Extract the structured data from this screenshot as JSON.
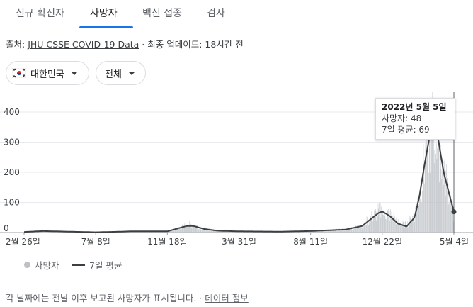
{
  "tabs": [
    {
      "label": "신규 확진자",
      "active": false
    },
    {
      "label": "사망자",
      "active": true
    },
    {
      "label": "백신 접종",
      "active": false
    },
    {
      "label": "검사",
      "active": false
    }
  ],
  "source": {
    "prefix": "출처: ",
    "link": "JHU CSSE COVID-19 Data",
    "separator": " · ",
    "updated": "최종 업데이트: 18시간 전"
  },
  "filters": {
    "country": "대한민국",
    "country_flag": "south-korea-flag-icon",
    "region": "전체"
  },
  "tooltip": {
    "date": "2022년 5월 5일",
    "deaths": "사망자: 48",
    "avg": "7일 평균: 69"
  },
  "legend": {
    "deaths": "사망자",
    "avg": "7일 평균"
  },
  "footer": {
    "note": "각 날짜에는 전날 이후 보고된 사망자가 표시됩니다.",
    "separator": " · ",
    "link": "데이터 정보"
  },
  "colors": {
    "accent": "#1a73e8",
    "bars": "#bdc1c6",
    "avg_line": "#3c4043"
  },
  "chart_data": {
    "type": "bar",
    "title": "",
    "xlabel": "",
    "ylabel": "",
    "ylim": [
      0,
      400
    ],
    "yticks": [
      "0",
      "100",
      "200",
      "300",
      "400"
    ],
    "xticks": [
      "2월 26일",
      "7월 8일",
      "11월 18일",
      "3월 31일",
      "8월 11일",
      "12월 22일",
      "5월 4일"
    ],
    "grid": true,
    "legend_position": "bottom-left",
    "series": [
      {
        "name": "사망자",
        "kind": "bar",
        "keyframes": [
          [
            "2020-02-26",
            2
          ],
          [
            "2020-04-01",
            5
          ],
          [
            "2020-07-08",
            1
          ],
          [
            "2020-08-25",
            3
          ],
          [
            "2020-09-10",
            4
          ],
          [
            "2020-11-18",
            4
          ],
          [
            "2020-12-10",
            15
          ],
          [
            "2020-12-25",
            28
          ],
          [
            "2021-01-05",
            25
          ],
          [
            "2021-01-25",
            12
          ],
          [
            "2021-02-20",
            6
          ],
          [
            "2021-03-31",
            4
          ],
          [
            "2021-06-15",
            3
          ],
          [
            "2021-08-11",
            5
          ],
          [
            "2021-09-20",
            8
          ],
          [
            "2021-10-15",
            10
          ],
          [
            "2021-11-15",
            25
          ],
          [
            "2021-12-01",
            50
          ],
          [
            "2021-12-15",
            70
          ],
          [
            "2021-12-22",
            70
          ],
          [
            "2022-01-05",
            60
          ],
          [
            "2022-01-20",
            35
          ],
          [
            "2022-02-05",
            25
          ],
          [
            "2022-02-20",
            60
          ],
          [
            "2022-03-01",
            130
          ],
          [
            "2022-03-10",
            230
          ],
          [
            "2022-03-20",
            320
          ],
          [
            "2022-03-27",
            370
          ],
          [
            "2022-04-05",
            320
          ],
          [
            "2022-04-15",
            220
          ],
          [
            "2022-04-25",
            130
          ],
          [
            "2022-05-04",
            50
          ]
        ]
      },
      {
        "name": "7일 평균",
        "kind": "line",
        "keyframes": [
          [
            "2020-02-26",
            2
          ],
          [
            "2020-04-01",
            5
          ],
          [
            "2020-07-08",
            1
          ],
          [
            "2020-08-25",
            3
          ],
          [
            "2020-09-10",
            4
          ],
          [
            "2020-11-18",
            4
          ],
          [
            "2020-12-10",
            15
          ],
          [
            "2020-12-25",
            22
          ],
          [
            "2021-01-05",
            22
          ],
          [
            "2021-01-25",
            12
          ],
          [
            "2021-02-20",
            6
          ],
          [
            "2021-03-31",
            4
          ],
          [
            "2021-06-15",
            3
          ],
          [
            "2021-08-11",
            5
          ],
          [
            "2021-09-20",
            8
          ],
          [
            "2021-10-15",
            10
          ],
          [
            "2021-11-15",
            22
          ],
          [
            "2021-12-01",
            45
          ],
          [
            "2021-12-15",
            65
          ],
          [
            "2021-12-22",
            70
          ],
          [
            "2022-01-05",
            55
          ],
          [
            "2022-01-20",
            30
          ],
          [
            "2022-02-05",
            20
          ],
          [
            "2022-02-20",
            50
          ],
          [
            "2022-03-01",
            120
          ],
          [
            "2022-03-10",
            220
          ],
          [
            "2022-03-20",
            320
          ],
          [
            "2022-03-27",
            360
          ],
          [
            "2022-04-05",
            310
          ],
          [
            "2022-04-15",
            200
          ],
          [
            "2022-04-25",
            130
          ],
          [
            "2022-05-04",
            69
          ]
        ]
      }
    ],
    "highlight": {
      "date": "2022-05-05",
      "deaths": 48,
      "avg": 69
    }
  }
}
